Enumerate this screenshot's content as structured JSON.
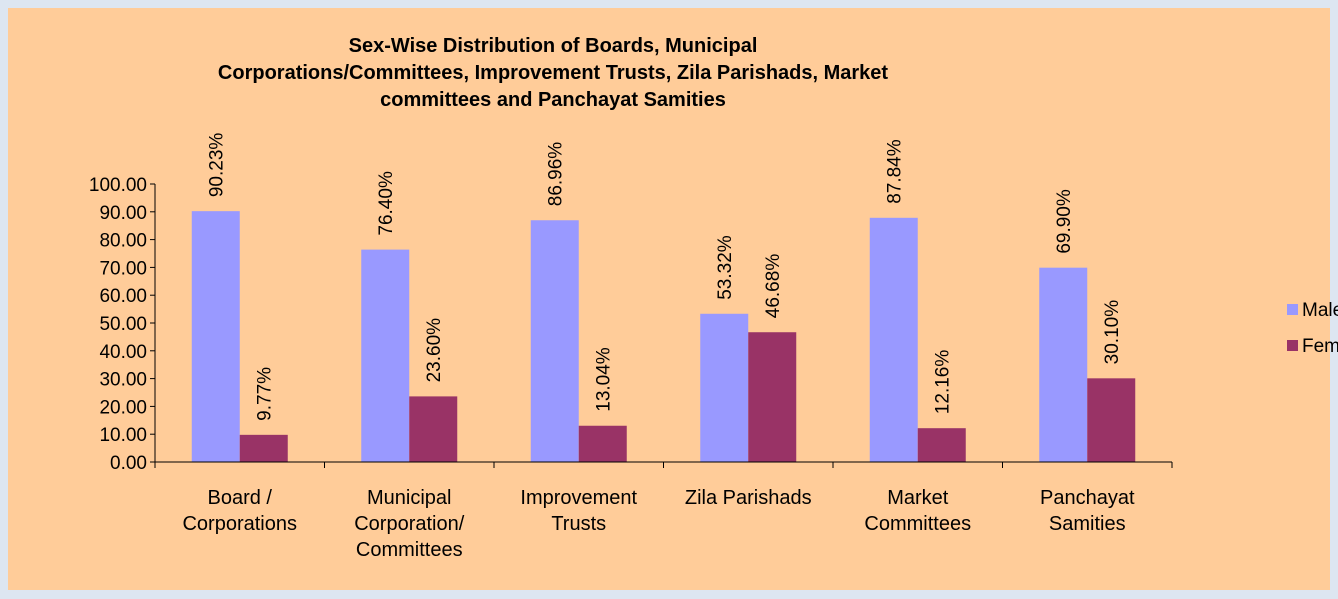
{
  "chart_data": {
    "type": "bar",
    "title": [
      "Sex-Wise Distribution of Boards, Municipal",
      "Corporations/Committees, Improvement Trusts, Zila Parishads, Market",
      "committees and Panchayat Samities"
    ],
    "categories": [
      "Board / Corporations",
      "Municipal Corporation/ Committees",
      "Improvement Trusts",
      "Zila Parishads",
      "Market Committees",
      "Panchayat Samities"
    ],
    "series": [
      {
        "name": "Male",
        "color": "#9999ff",
        "values": [
          90.23,
          76.4,
          86.96,
          53.32,
          87.84,
          69.9
        ],
        "value_labels": [
          "90.23%",
          "76.40%",
          "86.96%",
          "53.32%",
          "87.84%",
          "69.90%"
        ]
      },
      {
        "name": "Female",
        "color": "#993366",
        "values": [
          9.77,
          23.6,
          13.04,
          46.68,
          12.16,
          30.1
        ],
        "value_labels": [
          "9.77%",
          "23.60%",
          "13.04%",
          "46.68%",
          "12.16%",
          "30.10%"
        ]
      }
    ],
    "ylim": [
      0,
      100
    ],
    "yticks": [
      {
        "value": 0,
        "label": "0.00"
      },
      {
        "value": 10,
        "label": "10.00"
      },
      {
        "value": 20,
        "label": "20.00"
      },
      {
        "value": 30,
        "label": "30.00"
      },
      {
        "value": 40,
        "label": "40.00"
      },
      {
        "value": 50,
        "label": "50.00"
      },
      {
        "value": 60,
        "label": "60.00"
      },
      {
        "value": 70,
        "label": "70.00"
      },
      {
        "value": 80,
        "label": "80.00"
      },
      {
        "value": 90,
        "label": "90.00"
      },
      {
        "value": 100,
        "label": "100.00"
      }
    ],
    "legend": "right",
    "grid": false
  }
}
